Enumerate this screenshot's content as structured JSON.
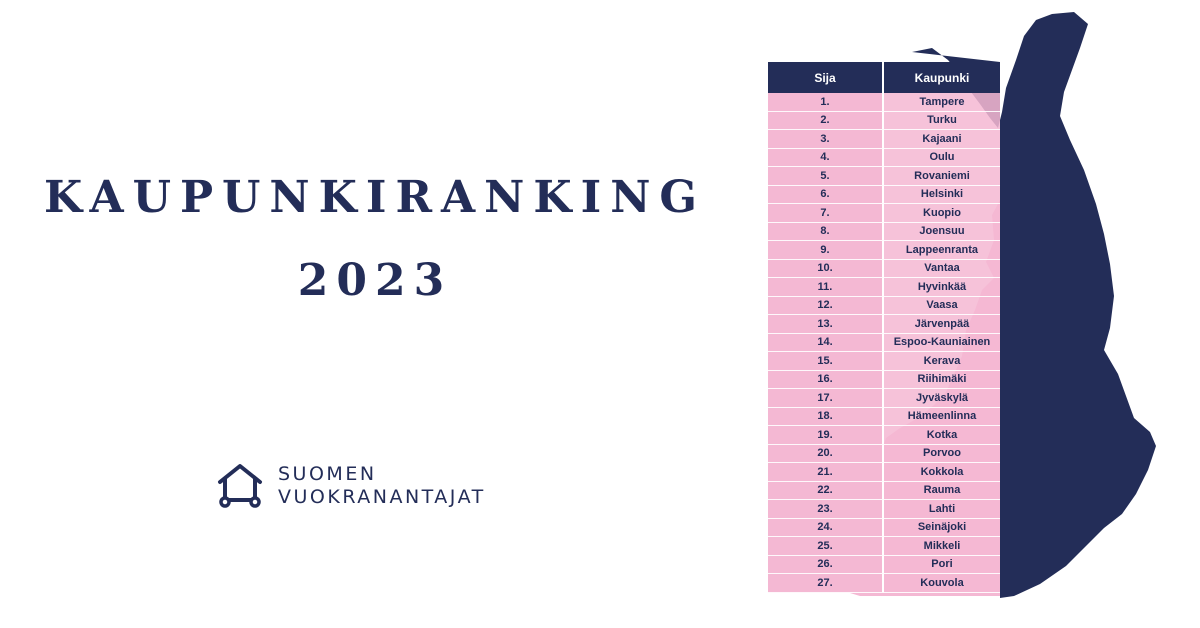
{
  "title": {
    "line1": "KAUPUNKIRANKING",
    "line2": "2023"
  },
  "logo": {
    "icon": "house-with-wheels-icon",
    "line1": "SUOMEN",
    "line2": "VUOKRANANTAJAT"
  },
  "table": {
    "headers": [
      "Sija",
      "Kaupunki"
    ],
    "rows": [
      [
        "1.",
        "Tampere"
      ],
      [
        "2.",
        "Turku"
      ],
      [
        "3.",
        "Kajaani"
      ],
      [
        "4.",
        "Oulu"
      ],
      [
        "5.",
        "Rovaniemi"
      ],
      [
        "6.",
        "Helsinki"
      ],
      [
        "7.",
        "Kuopio"
      ],
      [
        "8.",
        "Joensuu"
      ],
      [
        "9.",
        "Lappeenranta"
      ],
      [
        "10.",
        "Vantaa"
      ],
      [
        "11.",
        "Hyvinkää"
      ],
      [
        "12.",
        "Vaasa"
      ],
      [
        "13.",
        "Järvenpää"
      ],
      [
        "14.",
        "Espoo-Kauniainen"
      ],
      [
        "15.",
        "Kerava"
      ],
      [
        "16.",
        "Riihimäki"
      ],
      [
        "17.",
        "Jyväskylä"
      ],
      [
        "18.",
        "Hämeenlinna"
      ],
      [
        "19.",
        "Kotka"
      ],
      [
        "20.",
        "Porvoo"
      ],
      [
        "21.",
        "Kokkola"
      ],
      [
        "22.",
        "Rauma"
      ],
      [
        "23.",
        "Lahti"
      ],
      [
        "24.",
        "Seinäjoki"
      ],
      [
        "25.",
        "Mikkeli"
      ],
      [
        "26.",
        "Pori"
      ],
      [
        "27.",
        "Kouvola"
      ]
    ]
  },
  "colors": {
    "navy": "#232d58",
    "pink": "#f4b8d3"
  }
}
